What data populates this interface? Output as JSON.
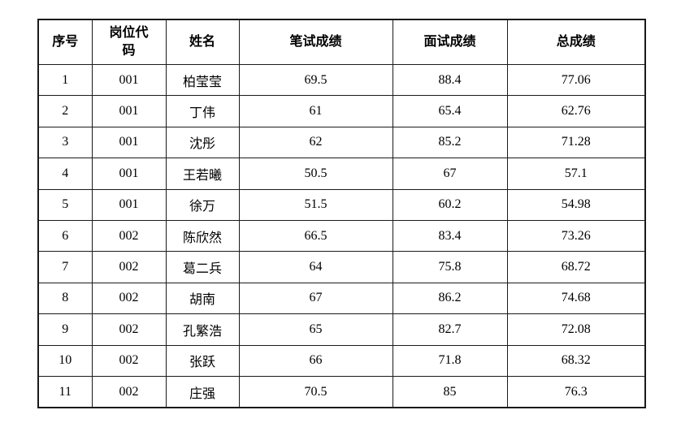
{
  "table": {
    "columns": [
      {
        "key": "index",
        "field": "index",
        "label": "序号"
      },
      {
        "key": "position-code",
        "field": "code",
        "label": "岗位代码"
      },
      {
        "key": "name",
        "field": "name",
        "label": "姓名"
      },
      {
        "key": "written-score",
        "field": "written",
        "label": "笔试成绩"
      },
      {
        "key": "interview-score",
        "field": "interview",
        "label": "面试成绩"
      },
      {
        "key": "total-score",
        "field": "total",
        "label": "总成绩"
      }
    ],
    "rows": [
      {
        "index": "1",
        "code": "001",
        "name": "柏莹莹",
        "written": "69.5",
        "interview": "88.4",
        "total": "77.06"
      },
      {
        "index": "2",
        "code": "001",
        "name": "丁伟",
        "written": "61",
        "interview": "65.4",
        "total": "62.76"
      },
      {
        "index": "3",
        "code": "001",
        "name": "沈彤",
        "written": "62",
        "interview": "85.2",
        "total": "71.28"
      },
      {
        "index": "4",
        "code": "001",
        "name": "王若曦",
        "written": "50.5",
        "interview": "67",
        "total": "57.1"
      },
      {
        "index": "5",
        "code": "001",
        "name": "徐万",
        "written": "51.5",
        "interview": "60.2",
        "total": "54.98"
      },
      {
        "index": "6",
        "code": "002",
        "name": "陈欣然",
        "written": "66.5",
        "interview": "83.4",
        "total": "73.26"
      },
      {
        "index": "7",
        "code": "002",
        "name": "葛二兵",
        "written": "64",
        "interview": "75.8",
        "total": "68.72"
      },
      {
        "index": "8",
        "code": "002",
        "name": "胡南",
        "written": "67",
        "interview": "86.2",
        "total": "74.68"
      },
      {
        "index": "9",
        "code": "002",
        "name": "孔繁浩",
        "written": "65",
        "interview": "82.7",
        "total": "72.08"
      },
      {
        "index": "10",
        "code": "002",
        "name": "张跃",
        "written": "66",
        "interview": "71.8",
        "total": "68.32"
      },
      {
        "index": "11",
        "code": "002",
        "name": "庄强",
        "written": "70.5",
        "interview": "85",
        "total": "76.3"
      }
    ],
    "colors": {
      "border": "#1a1a1a",
      "text": "#000000",
      "background": "#ffffff"
    }
  }
}
